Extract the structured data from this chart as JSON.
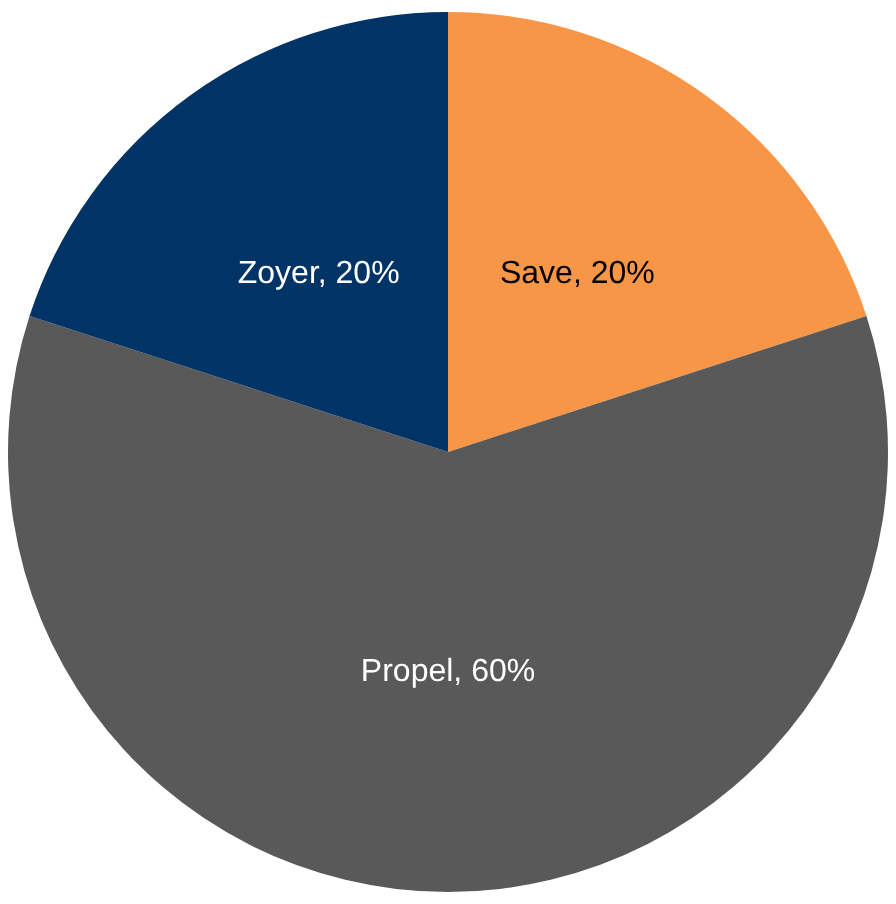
{
  "chart_data": {
    "type": "pie",
    "categories": [
      "Save",
      "Propel",
      "Zoyer"
    ],
    "values": [
      20,
      60,
      20
    ],
    "colors": [
      "#f79646",
      "#595959",
      "#003366"
    ],
    "value_labels": [
      "20%",
      "60%",
      "20%"
    ],
    "legend": false
  }
}
